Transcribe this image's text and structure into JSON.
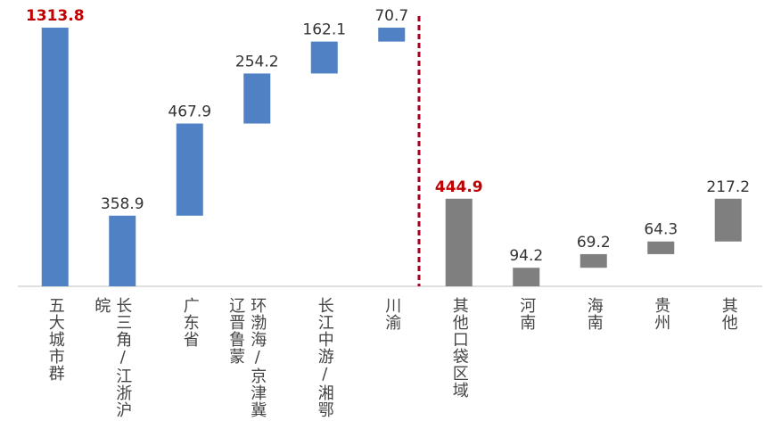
{
  "chart_data": {
    "type": "waterfall",
    "categories": [
      "五大城市群",
      "长三角/江浙沪皖",
      "广东省",
      "环渤海/京津冀辽晋鲁蒙",
      "长江中游/湘鄂",
      "川渝",
      "其他口袋区域",
      "河南",
      "海南",
      "贵州",
      "其他"
    ],
    "values": [
      1313.8,
      358.9,
      467.9,
      254.2,
      162.1,
      70.7,
      444.9,
      94.2,
      69.2,
      64.3,
      217.2
    ],
    "measure": [
      "total",
      "relative",
      "relative",
      "relative",
      "relative",
      "relative",
      "total",
      "relative",
      "relative",
      "relative",
      "relative"
    ],
    "colors": [
      "#4f81c4",
      "#4f81c4",
      "#4f81c4",
      "#4f81c4",
      "#4f81c4",
      "#4f81c4",
      "#7f7f7f",
      "#7f7f7f",
      "#7f7f7f",
      "#7f7f7f",
      "#7f7f7f"
    ],
    "total_label_color": "#c00000",
    "divider_color": "#a50021",
    "ylim": [
      0,
      1400
    ]
  }
}
